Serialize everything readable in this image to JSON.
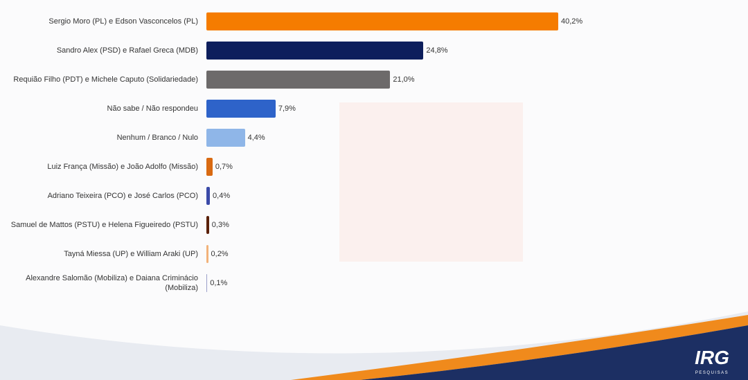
{
  "chart_data": {
    "type": "bar",
    "orientation": "horizontal",
    "categories": [
      "Sergio Moro (PL) e Edson Vasconcelos (PL)",
      "Sandro Alex (PSD) e Rafael Greca (MDB)",
      "Requião Filho (PDT) e Michele Caputo (Solidariedade)",
      "Não sabe / Não respondeu",
      "Nenhum / Branco / Nulo",
      "Luiz França (Missão) e João Adolfo (Missão)",
      "Adriano Teixeira (PCO) e José Carlos (PCO)",
      "Samuel de Mattos (PSTU) e Helena Figueiredo (PSTU)",
      "Tayná Miessa (UP) e William Araki (UP)",
      "Alexandre Salomão (Mobiliza) e Daiana Criminácio (Mobiliza)"
    ],
    "values": [
      40.2,
      24.8,
      21.0,
      7.9,
      4.4,
      0.7,
      0.4,
      0.3,
      0.2,
      0.1
    ],
    "value_labels": [
      "40,2%",
      "24,8%",
      "21,0%",
      "7,9%",
      "4,4%",
      "0,7%",
      "0,4%",
      "0,3%",
      "0,2%",
      "0,1%"
    ],
    "colors": [
      "#f57c00",
      "#0d1e5c",
      "#6d6a6a",
      "#2e63c9",
      "#8fb6e8",
      "#d96a12",
      "#3b4aa8",
      "#5a2008",
      "#f2b27a",
      "#9a9fc9"
    ]
  },
  "logo": {
    "name": "IRG",
    "subtitle": "PESQUISAS"
  }
}
